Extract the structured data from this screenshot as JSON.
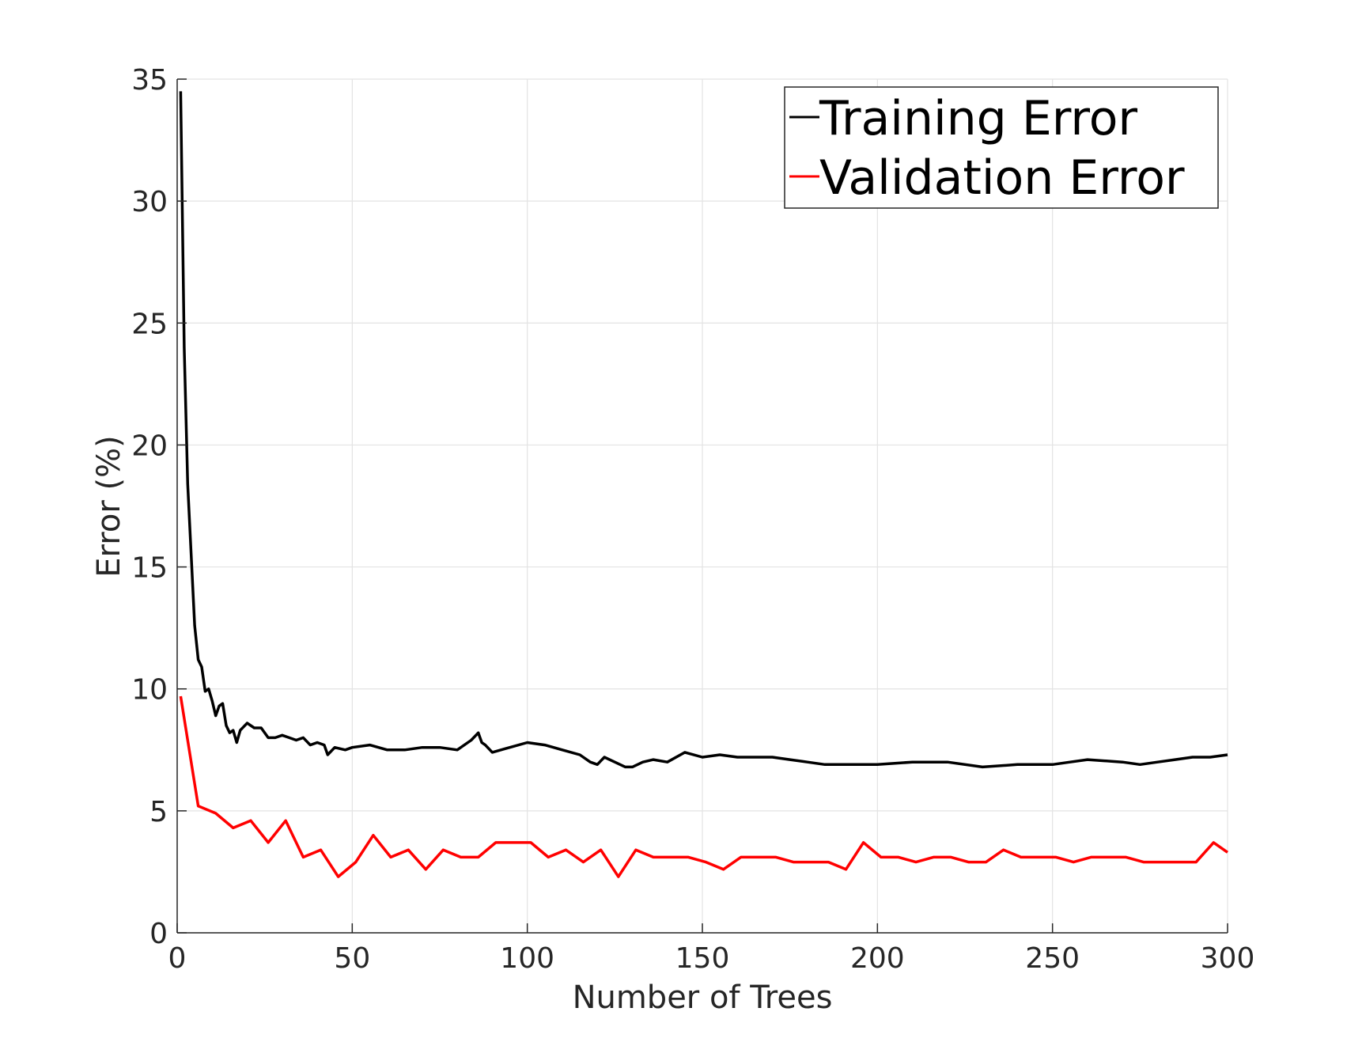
{
  "chart_data": {
    "type": "line",
    "xlabel": "Number of Trees",
    "ylabel": "Error (%)",
    "xlim": [
      0,
      300
    ],
    "ylim": [
      0,
      35
    ],
    "xticks": [
      "0",
      "50",
      "100",
      "150",
      "200",
      "250",
      "300"
    ],
    "yticks": [
      "0",
      "5",
      "10",
      "15",
      "20",
      "25",
      "30",
      "35"
    ],
    "grid": true,
    "legend_position": "top-right",
    "series": [
      {
        "name": "Training Error",
        "color": "#000000",
        "x": [
          1,
          2,
          3,
          4,
          5,
          6,
          7,
          8,
          9,
          10,
          11,
          12,
          13,
          14,
          15,
          16,
          17,
          18,
          20,
          22,
          24,
          26,
          28,
          30,
          32,
          34,
          36,
          38,
          40,
          42,
          43,
          45,
          48,
          50,
          55,
          60,
          65,
          70,
          75,
          80,
          84,
          86,
          87,
          88,
          90,
          95,
          100,
          105,
          110,
          115,
          118,
          120,
          122,
          125,
          128,
          130,
          133,
          136,
          140,
          145,
          150,
          155,
          160,
          165,
          170,
          175,
          180,
          185,
          190,
          195,
          200,
          210,
          220,
          230,
          240,
          250,
          255,
          260,
          270,
          275,
          280,
          285,
          290,
          295,
          300
        ],
        "values": [
          34.5,
          24.0,
          18.4,
          15.5,
          12.6,
          11.2,
          10.9,
          9.9,
          10.0,
          9.5,
          8.9,
          9.3,
          9.4,
          8.5,
          8.2,
          8.3,
          7.8,
          8.3,
          8.6,
          8.4,
          8.4,
          8.0,
          8.0,
          8.1,
          8.0,
          7.9,
          8.0,
          7.7,
          7.8,
          7.7,
          7.3,
          7.6,
          7.5,
          7.6,
          7.7,
          7.5,
          7.5,
          7.6,
          7.6,
          7.5,
          7.9,
          8.2,
          7.8,
          7.7,
          7.4,
          7.6,
          7.8,
          7.7,
          7.5,
          7.3,
          7.0,
          6.9,
          7.2,
          7.0,
          6.8,
          6.8,
          7.0,
          7.1,
          7.0,
          7.4,
          7.2,
          7.3,
          7.2,
          7.2,
          7.2,
          7.1,
          7.0,
          6.9,
          6.9,
          6.9,
          6.9,
          7.0,
          7.0,
          6.8,
          6.9,
          6.9,
          7.0,
          7.1,
          7.0,
          6.9,
          7.0,
          7.1,
          7.2,
          7.2,
          7.3
        ]
      },
      {
        "name": "Validation Error",
        "color": "#ff0000",
        "x": [
          1,
          6,
          11,
          16,
          21,
          26,
          31,
          36,
          41,
          46,
          51,
          56,
          61,
          66,
          71,
          76,
          81,
          86,
          91,
          96,
          101,
          106,
          111,
          116,
          121,
          126,
          131,
          136,
          141,
          146,
          151,
          156,
          161,
          166,
          171,
          176,
          181,
          186,
          191,
          196,
          201,
          206,
          211,
          216,
          221,
          226,
          231,
          236,
          241,
          246,
          251,
          256,
          261,
          266,
          271,
          276,
          281,
          286,
          291,
          296,
          300
        ],
        "values": [
          9.7,
          5.2,
          4.9,
          4.3,
          4.6,
          3.7,
          4.6,
          3.1,
          3.4,
          2.3,
          2.9,
          4.0,
          3.1,
          3.4,
          2.6,
          3.4,
          3.1,
          3.1,
          3.7,
          3.7,
          3.7,
          3.1,
          3.4,
          2.9,
          3.4,
          2.3,
          3.4,
          3.1,
          3.1,
          3.1,
          2.9,
          2.6,
          3.1,
          3.1,
          3.1,
          2.9,
          2.9,
          2.9,
          2.6,
          3.7,
          3.1,
          3.1,
          2.9,
          3.1,
          3.1,
          2.9,
          2.9,
          3.4,
          3.1,
          3.1,
          3.1,
          2.9,
          3.1,
          3.1,
          3.1,
          2.9,
          2.9,
          2.9,
          2.9,
          3.7,
          3.3
        ]
      }
    ]
  }
}
